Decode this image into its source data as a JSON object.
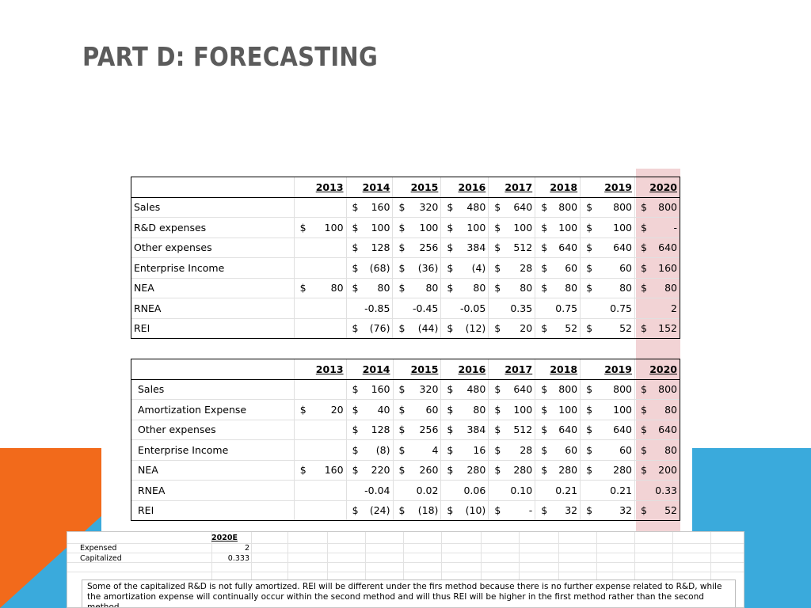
{
  "slide": {
    "title": "PART D: FORECASTING"
  },
  "table1": {
    "years": [
      "2013",
      "2014",
      "2015",
      "2016",
      "2017",
      "2018",
      "2019",
      "2020"
    ],
    "rows": [
      {
        "label": "Sales",
        "cells": [
          [
            "",
            ""
          ],
          [
            "$",
            "160"
          ],
          [
            "$",
            "320"
          ],
          [
            "$",
            "480"
          ],
          [
            "$",
            "640"
          ],
          [
            "$",
            "800"
          ],
          [
            "$",
            "800"
          ],
          [
            "$",
            "800"
          ]
        ]
      },
      {
        "label": "R&D expenses",
        "cells": [
          [
            "$",
            "100"
          ],
          [
            "$",
            "100"
          ],
          [
            "$",
            "100"
          ],
          [
            "$",
            "100"
          ],
          [
            "$",
            "100"
          ],
          [
            "$",
            "100"
          ],
          [
            "$",
            "100"
          ],
          [
            "$",
            "-"
          ]
        ]
      },
      {
        "label": "Other expenses",
        "cells": [
          [
            "",
            ""
          ],
          [
            "$",
            "128"
          ],
          [
            "$",
            "256"
          ],
          [
            "$",
            "384"
          ],
          [
            "$",
            "512"
          ],
          [
            "$",
            "640"
          ],
          [
            "$",
            "640"
          ],
          [
            "$",
            "640"
          ]
        ]
      },
      {
        "label": "Enterprise Income",
        "cells": [
          [
            "",
            ""
          ],
          [
            "$",
            "(68)"
          ],
          [
            "$",
            "(36)"
          ],
          [
            "$",
            "(4)"
          ],
          [
            "$",
            "28"
          ],
          [
            "$",
            "60"
          ],
          [
            "$",
            "60"
          ],
          [
            "$",
            "160"
          ]
        ]
      },
      {
        "label": "NEA",
        "cells": [
          [
            "$",
            "80"
          ],
          [
            "$",
            "80"
          ],
          [
            "$",
            "80"
          ],
          [
            "$",
            "80"
          ],
          [
            "$",
            "80"
          ],
          [
            "$",
            "80"
          ],
          [
            "$",
            "80"
          ],
          [
            "$",
            "80"
          ]
        ]
      },
      {
        "label": "RNEA",
        "cells": [
          [
            "",
            ""
          ],
          [
            "",
            "-0.85"
          ],
          [
            "",
            "-0.45"
          ],
          [
            "",
            "-0.05"
          ],
          [
            "",
            "0.35"
          ],
          [
            "",
            "0.75"
          ],
          [
            "",
            "0.75"
          ],
          [
            "",
            "2"
          ]
        ]
      },
      {
        "label": "REI",
        "cells": [
          [
            "",
            ""
          ],
          [
            "$",
            "(76)"
          ],
          [
            "$",
            "(44)"
          ],
          [
            "$",
            "(12)"
          ],
          [
            "$",
            "20"
          ],
          [
            "$",
            "52"
          ],
          [
            "$",
            "52"
          ],
          [
            "$",
            "152"
          ]
        ]
      }
    ]
  },
  "table2": {
    "years": [
      "2013",
      "2014",
      "2015",
      "2016",
      "2017",
      "2018",
      "2019",
      "2020"
    ],
    "rows": [
      {
        "label": "Sales",
        "cells": [
          [
            "",
            ""
          ],
          [
            "$",
            "160"
          ],
          [
            "$",
            "320"
          ],
          [
            "$",
            "480"
          ],
          [
            "$",
            "640"
          ],
          [
            "$",
            "800"
          ],
          [
            "$",
            "800"
          ],
          [
            "$",
            "800"
          ]
        ]
      },
      {
        "label": "Amortization Expense",
        "cells": [
          [
            "$",
            "20"
          ],
          [
            "$",
            "40"
          ],
          [
            "$",
            "60"
          ],
          [
            "$",
            "80"
          ],
          [
            "$",
            "100"
          ],
          [
            "$",
            "100"
          ],
          [
            "$",
            "100"
          ],
          [
            "$",
            "80"
          ]
        ]
      },
      {
        "label": "Other expenses",
        "cells": [
          [
            "",
            ""
          ],
          [
            "$",
            "128"
          ],
          [
            "$",
            "256"
          ],
          [
            "$",
            "384"
          ],
          [
            "$",
            "512"
          ],
          [
            "$",
            "640"
          ],
          [
            "$",
            "640"
          ],
          [
            "$",
            "640"
          ]
        ]
      },
      {
        "label": "Enterprise Income",
        "cells": [
          [
            "",
            ""
          ],
          [
            "$",
            "(8)"
          ],
          [
            "$",
            "4"
          ],
          [
            "$",
            "16"
          ],
          [
            "$",
            "28"
          ],
          [
            "$",
            "60"
          ],
          [
            "$",
            "60"
          ],
          [
            "$",
            "80"
          ]
        ]
      },
      {
        "label": "NEA",
        "cells": [
          [
            "$",
            "160"
          ],
          [
            "$",
            "220"
          ],
          [
            "$",
            "260"
          ],
          [
            "$",
            "280"
          ],
          [
            "$",
            "280"
          ],
          [
            "$",
            "280"
          ],
          [
            "$",
            "280"
          ],
          [
            "$",
            "200"
          ]
        ]
      },
      {
        "label": "RNEA",
        "cells": [
          [
            "",
            ""
          ],
          [
            "",
            "-0.04"
          ],
          [
            "",
            "0.02"
          ],
          [
            "",
            "0.06"
          ],
          [
            "",
            "0.10"
          ],
          [
            "",
            "0.21"
          ],
          [
            "",
            "0.21"
          ],
          [
            "",
            "0.33"
          ]
        ]
      },
      {
        "label": "REI",
        "cells": [
          [
            "",
            ""
          ],
          [
            "$",
            "(24)"
          ],
          [
            "$",
            "(18)"
          ],
          [
            "$",
            "(10)"
          ],
          [
            "$",
            "-"
          ],
          [
            "$",
            "32"
          ],
          [
            "$",
            "32"
          ],
          [
            "$",
            "52"
          ]
        ]
      }
    ]
  },
  "summary": {
    "header": "2020E",
    "rows": [
      {
        "label": "Expensed",
        "value": "2"
      },
      {
        "label": "Capitalized",
        "value": "0.333"
      }
    ],
    "note": "Some of the capitalized R&D is not fully amortized. REI will be different under the firs method because there is no further expense related to R&D, while the amortization expense will continually occur within the second method and will thus REI will be higher in the first method rather than the second method."
  },
  "colors": {
    "title": "#5b5b5b",
    "orange_accent": "#f26a1b",
    "blue_accent": "#3aaadc",
    "highlight_2020": "#f2d3d5"
  }
}
